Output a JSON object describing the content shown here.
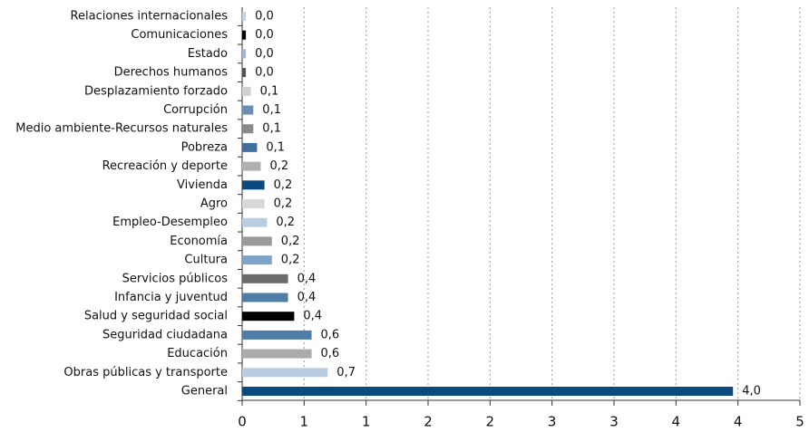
{
  "chart_data": {
    "type": "barh",
    "categories": [
      "Relaciones internacionales",
      "Comunicaciones",
      "Estado",
      "Derechos humanos",
      "Desplazamiento forzado",
      "Corrupción",
      "Medio ambiente-Recursos naturales",
      "Pobreza",
      "Recreación y deporte",
      "Vivienda",
      "Agro",
      "Empleo-Desempleo",
      "Economía",
      "Cultura",
      "Servicios públicos",
      "Infancia y juventud",
      "Salud y seguridad social",
      "Seguridad ciudadana",
      "Educación",
      "Obras públicas y transporte",
      "General"
    ],
    "values": [
      0.03,
      0.03,
      0.03,
      0.03,
      0.07,
      0.09,
      0.09,
      0.12,
      0.15,
      0.18,
      0.18,
      0.2,
      0.24,
      0.24,
      0.37,
      0.37,
      0.42,
      0.56,
      0.56,
      0.69,
      3.96
    ],
    "value_labels": [
      "0,0",
      "0,0",
      "0,0",
      "0,0",
      "0,1",
      "0,1",
      "0,1",
      "0,1",
      "0,2",
      "0,2",
      "0,2",
      "0,2",
      "0,2",
      "0,2",
      "0,4",
      "0,4",
      "0,4",
      "0,6",
      "0,6",
      "0,7",
      "4,0"
    ],
    "colors": [
      "#c5d5e8",
      "#000000",
      "#9fb8d4",
      "#555555",
      "#d0d0d0",
      "#6a8fb5",
      "#8a8a8a",
      "#3f6f9f",
      "#b0b0b0",
      "#0a4a80",
      "#d8d8d8",
      "#b8cce2",
      "#9a9a9a",
      "#7fa3c8",
      "#6a6a6a",
      "#4e7ea8",
      "#000000",
      "#4e7ea8",
      "#ababab",
      "#b8cce2",
      "#0a4a80"
    ],
    "xlim": [
      0,
      4.5
    ],
    "xticks": [
      0,
      {
        "value": 0.5,
        "label": "1"
      },
      {
        "value": 1,
        "label": "1"
      },
      {
        "value": 1.5,
        "label": "2"
      },
      {
        "value": 2,
        "label": "2"
      },
      {
        "value": 2.5,
        "label": "3"
      },
      {
        "value": 3,
        "label": "3"
      },
      {
        "value": 3.5,
        "label": "4"
      },
      {
        "value": 4,
        "label": "4"
      },
      {
        "value": 4.5,
        "label": "5"
      }
    ],
    "grid": true
  }
}
